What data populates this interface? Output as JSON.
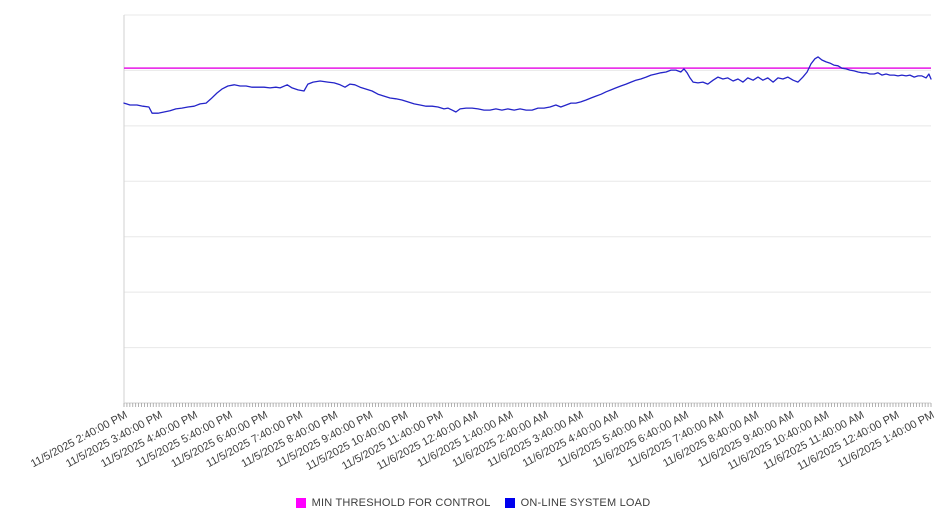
{
  "colors": {
    "background": "#ffffff",
    "grid": "#e8e8e8",
    "axis": "#d2d2d2",
    "tick": "#999999",
    "label_text": "#3f3f3f",
    "legend_text": "#3d3d3d",
    "threshold_line": "#e716e7",
    "load_line": "#2424c9",
    "threshold_swatch": "#ff00ff",
    "load_swatch": "#0000ee"
  },
  "chart_data": {
    "type": "line",
    "title": "",
    "xlabel": "",
    "ylabel": "",
    "grid": {
      "horizontal_divisions": 7,
      "vertical_gridlines": false
    },
    "legend_position": "bottom-center",
    "y_axis": {
      "labels_visible": false,
      "unit": "relative (unlabeled axis)",
      "ylim": [
        0,
        100
      ]
    },
    "x_axis": {
      "range_hours": [
        0,
        23
      ],
      "minor_tick_interval_minutes": 5,
      "label_rotation_deg": -28,
      "labels": [
        "11/5/2025 2:40:00 PM",
        "11/5/2025 3:40:00 PM",
        "11/5/2025 4:40:00 PM",
        "11/5/2025 5:40:00 PM",
        "11/5/2025 6:40:00 PM",
        "11/5/2025 7:40:00 PM",
        "11/5/2025 8:40:00 PM",
        "11/5/2025 9:40:00 PM",
        "11/5/2025 10:40:00 PM",
        "11/5/2025 11:40:00 PM",
        "11/6/2025 12:40:00 AM",
        "11/6/2025 1:40:00 AM",
        "11/6/2025 2:40:00 AM",
        "11/6/2025 3:40:00 AM",
        "11/6/2025 4:40:00 AM",
        "11/6/2025 5:40:00 AM",
        "11/6/2025 6:40:00 AM",
        "11/6/2025 7:40:00 AM",
        "11/6/2025 8:40:00 AM",
        "11/6/2025 9:40:00 AM",
        "11/6/2025 10:40:00 AM",
        "11/6/2025 11:40:00 AM",
        "11/6/2025 12:40:00 PM",
        "11/6/2025 1:40:00 PM"
      ]
    },
    "series": [
      {
        "name": "MIN THRESHOLD FOR CONTROL",
        "type": "threshold",
        "color": "#e716e7",
        "value": 86.3
      },
      {
        "name": "ON-LINE SYSTEM LOAD",
        "type": "line",
        "color": "#2424c9",
        "points_format": "[hours_from_start, value_0_100]",
        "points": [
          [
            0.0,
            77.3
          ],
          [
            0.17,
            76.8
          ],
          [
            0.37,
            76.8
          ],
          [
            0.54,
            76.5
          ],
          [
            0.71,
            76.3
          ],
          [
            0.8,
            74.7
          ],
          [
            0.97,
            74.7
          ],
          [
            1.14,
            75.0
          ],
          [
            1.31,
            75.3
          ],
          [
            1.48,
            75.8
          ],
          [
            1.65,
            76.0
          ],
          [
            1.82,
            76.3
          ],
          [
            2.0,
            76.5
          ],
          [
            2.17,
            77.1
          ],
          [
            2.34,
            77.3
          ],
          [
            2.48,
            78.4
          ],
          [
            2.65,
            79.9
          ],
          [
            2.79,
            80.9
          ],
          [
            2.96,
            81.7
          ],
          [
            3.14,
            82.0
          ],
          [
            3.31,
            81.7
          ],
          [
            3.48,
            81.7
          ],
          [
            3.65,
            81.4
          ],
          [
            3.82,
            81.4
          ],
          [
            3.99,
            81.4
          ],
          [
            4.16,
            81.2
          ],
          [
            4.33,
            81.4
          ],
          [
            4.45,
            81.2
          ],
          [
            4.65,
            82.0
          ],
          [
            4.79,
            81.2
          ],
          [
            4.96,
            80.7
          ],
          [
            5.13,
            80.4
          ],
          [
            5.24,
            82.2
          ],
          [
            5.39,
            82.7
          ],
          [
            5.59,
            83.0
          ],
          [
            5.81,
            82.7
          ],
          [
            5.99,
            82.5
          ],
          [
            6.16,
            82.0
          ],
          [
            6.3,
            81.4
          ],
          [
            6.44,
            82.2
          ],
          [
            6.58,
            82.0
          ],
          [
            6.73,
            81.4
          ],
          [
            6.9,
            80.9
          ],
          [
            7.07,
            80.4
          ],
          [
            7.24,
            79.6
          ],
          [
            7.41,
            79.1
          ],
          [
            7.58,
            78.6
          ],
          [
            7.75,
            78.4
          ],
          [
            7.92,
            78.1
          ],
          [
            8.09,
            77.6
          ],
          [
            8.27,
            77.1
          ],
          [
            8.44,
            76.8
          ],
          [
            8.61,
            76.5
          ],
          [
            8.78,
            76.5
          ],
          [
            8.95,
            76.3
          ],
          [
            9.12,
            75.8
          ],
          [
            9.23,
            76.0
          ],
          [
            9.35,
            75.5
          ],
          [
            9.46,
            75.0
          ],
          [
            9.58,
            75.8
          ],
          [
            9.75,
            76.0
          ],
          [
            9.92,
            76.0
          ],
          [
            10.09,
            75.8
          ],
          [
            10.26,
            75.5
          ],
          [
            10.43,
            75.5
          ],
          [
            10.6,
            75.8
          ],
          [
            10.77,
            75.5
          ],
          [
            10.94,
            75.8
          ],
          [
            11.12,
            75.5
          ],
          [
            11.29,
            75.8
          ],
          [
            11.46,
            75.5
          ],
          [
            11.63,
            75.5
          ],
          [
            11.8,
            76.0
          ],
          [
            11.97,
            76.0
          ],
          [
            12.14,
            76.3
          ],
          [
            12.31,
            76.8
          ],
          [
            12.45,
            76.3
          ],
          [
            12.6,
            76.8
          ],
          [
            12.74,
            77.3
          ],
          [
            12.88,
            77.3
          ],
          [
            13.02,
            77.6
          ],
          [
            13.17,
            78.1
          ],
          [
            13.31,
            78.6
          ],
          [
            13.45,
            79.1
          ],
          [
            13.6,
            79.6
          ],
          [
            13.74,
            80.2
          ],
          [
            13.88,
            80.7
          ],
          [
            14.02,
            81.2
          ],
          [
            14.16,
            81.7
          ],
          [
            14.31,
            82.2
          ],
          [
            14.45,
            82.7
          ],
          [
            14.59,
            83.2
          ],
          [
            14.73,
            83.5
          ],
          [
            14.88,
            84.0
          ],
          [
            15.02,
            84.5
          ],
          [
            15.16,
            84.8
          ],
          [
            15.3,
            85.1
          ],
          [
            15.45,
            85.3
          ],
          [
            15.59,
            85.8
          ],
          [
            15.73,
            85.8
          ],
          [
            15.87,
            85.3
          ],
          [
            15.96,
            86.1
          ],
          [
            16.05,
            85.1
          ],
          [
            16.13,
            83.8
          ],
          [
            16.22,
            82.7
          ],
          [
            16.36,
            82.5
          ],
          [
            16.5,
            82.7
          ],
          [
            16.64,
            82.2
          ],
          [
            16.79,
            83.2
          ],
          [
            16.93,
            84.0
          ],
          [
            17.07,
            83.5
          ],
          [
            17.21,
            83.8
          ],
          [
            17.36,
            83.0
          ],
          [
            17.5,
            83.5
          ],
          [
            17.64,
            82.7
          ],
          [
            17.78,
            83.8
          ],
          [
            17.93,
            83.2
          ],
          [
            18.07,
            84.0
          ],
          [
            18.21,
            83.2
          ],
          [
            18.35,
            83.8
          ],
          [
            18.5,
            82.7
          ],
          [
            18.64,
            83.8
          ],
          [
            18.78,
            83.5
          ],
          [
            18.92,
            84.0
          ],
          [
            19.07,
            83.2
          ],
          [
            19.21,
            82.7
          ],
          [
            19.35,
            84.0
          ],
          [
            19.47,
            85.3
          ],
          [
            19.58,
            87.4
          ],
          [
            19.69,
            88.7
          ],
          [
            19.78,
            89.2
          ],
          [
            19.89,
            88.4
          ],
          [
            20.01,
            87.9
          ],
          [
            20.12,
            87.6
          ],
          [
            20.23,
            87.1
          ],
          [
            20.35,
            86.9
          ],
          [
            20.46,
            86.3
          ],
          [
            20.58,
            86.1
          ],
          [
            20.69,
            85.8
          ],
          [
            20.81,
            85.6
          ],
          [
            20.92,
            85.3
          ],
          [
            21.03,
            85.1
          ],
          [
            21.15,
            85.1
          ],
          [
            21.26,
            84.8
          ],
          [
            21.38,
            84.8
          ],
          [
            21.49,
            85.1
          ],
          [
            21.6,
            84.5
          ],
          [
            21.72,
            84.8
          ],
          [
            21.83,
            84.5
          ],
          [
            21.95,
            84.5
          ],
          [
            22.06,
            84.3
          ],
          [
            22.17,
            84.5
          ],
          [
            22.29,
            84.3
          ],
          [
            22.4,
            84.5
          ],
          [
            22.52,
            84.0
          ],
          [
            22.63,
            84.3
          ],
          [
            22.74,
            84.3
          ],
          [
            22.86,
            83.8
          ],
          [
            22.94,
            84.8
          ],
          [
            23.0,
            83.5
          ]
        ]
      }
    ]
  },
  "legend": {
    "entries": [
      {
        "label": "MIN THRESHOLD FOR CONTROL",
        "color": "#ff00ff"
      },
      {
        "label": "ON-LINE SYSTEM LOAD",
        "color": "#0000ee"
      }
    ]
  }
}
